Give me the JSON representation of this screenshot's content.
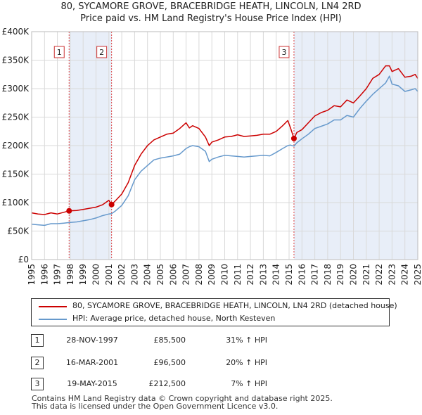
{
  "chart_data": {
    "type": "line",
    "title": "80, SYCAMORE GROVE, BRACEBRIDGE HEATH, LINCOLN, LN4 2RD",
    "subtitle": "Price paid vs. HM Land Registry's House Price Index (HPI)",
    "xlabel": "",
    "ylabel": "",
    "xlim": [
      1995,
      2025
    ],
    "ylim": [
      0,
      400000
    ],
    "grid": true,
    "x_ticks": [
      "1995",
      "1996",
      "1997",
      "1998",
      "1999",
      "2000",
      "2001",
      "2002",
      "2003",
      "2004",
      "2005",
      "2006",
      "2007",
      "2008",
      "2009",
      "2010",
      "2011",
      "2012",
      "2013",
      "2014",
      "2015",
      "2016",
      "2017",
      "2018",
      "2019",
      "2020",
      "2021",
      "2022",
      "2023",
      "2024",
      "2025"
    ],
    "y_ticks": [
      {
        "value": 0,
        "label": "£0"
      },
      {
        "value": 50000,
        "label": "£50K"
      },
      {
        "value": 100000,
        "label": "£100K"
      },
      {
        "value": 150000,
        "label": "£150K"
      },
      {
        "value": 200000,
        "label": "£200K"
      },
      {
        "value": 250000,
        "label": "£250K"
      },
      {
        "value": 300000,
        "label": "£300K"
      },
      {
        "value": 350000,
        "label": "£350K"
      },
      {
        "value": 400000,
        "label": "£400K"
      }
    ],
    "series": [
      {
        "name": "80, SYCAMORE GROVE, BRACEBRIDGE HEATH, LINCOLN, LN4 2RD (detached house)",
        "color": "#cc0000",
        "x": [
          1995.0,
          1995.5,
          1996.0,
          1996.5,
          1997.0,
          1997.5,
          1997.91,
          1998.5,
          1999.0,
          1999.5,
          2000.0,
          2000.5,
          2001.0,
          2001.21,
          2001.5,
          2002.0,
          2002.5,
          2003.0,
          2003.5,
          2004.0,
          2004.5,
          2005.0,
          2005.5,
          2006.0,
          2006.5,
          2007.0,
          2007.25,
          2007.5,
          2008.0,
          2008.5,
          2008.8,
          2009.0,
          2009.5,
          2010.0,
          2010.5,
          2011.0,
          2011.5,
          2012.0,
          2012.5,
          2013.0,
          2013.5,
          2014.0,
          2014.5,
          2014.9,
          2015.1,
          2015.38,
          2015.6,
          2016.0,
          2016.5,
          2017.0,
          2017.5,
          2018.0,
          2018.5,
          2019.0,
          2019.5,
          2020.0,
          2020.5,
          2021.0,
          2021.5,
          2022.0,
          2022.5,
          2022.8,
          2023.0,
          2023.5,
          2024.0,
          2024.5,
          2024.8,
          2025.0
        ],
        "values": [
          82000,
          80000,
          79000,
          82000,
          80000,
          83000,
          85500,
          86000,
          88000,
          90000,
          92000,
          96000,
          104000,
          96500,
          103000,
          115000,
          135000,
          165000,
          185000,
          200000,
          210000,
          215000,
          220000,
          222000,
          230000,
          240000,
          231000,
          235000,
          230000,
          215000,
          200000,
          206000,
          210000,
          215000,
          216000,
          219000,
          216000,
          217000,
          218000,
          220000,
          220000,
          225000,
          235000,
          244000,
          232000,
          212500,
          223000,
          228000,
          240000,
          252000,
          258000,
          262000,
          270000,
          268000,
          280000,
          275000,
          287000,
          300000,
          318000,
          325000,
          340000,
          340000,
          330000,
          335000,
          320000,
          322000,
          325000,
          318000
        ]
      },
      {
        "name": "HPI: Average price, detached house, North Kesteven",
        "color": "#6699cc",
        "x": [
          1995.0,
          1995.5,
          1996.0,
          1996.5,
          1997.0,
          1997.5,
          1997.91,
          1998.5,
          1999.0,
          1999.5,
          2000.0,
          2000.5,
          2001.0,
          2001.21,
          2001.5,
          2002.0,
          2002.5,
          2003.0,
          2003.5,
          2004.0,
          2004.5,
          2005.0,
          2005.5,
          2006.0,
          2006.5,
          2007.0,
          2007.25,
          2007.5,
          2008.0,
          2008.5,
          2008.8,
          2009.0,
          2009.5,
          2010.0,
          2010.5,
          2011.0,
          2011.5,
          2012.0,
          2012.5,
          2013.0,
          2013.5,
          2014.0,
          2014.5,
          2014.9,
          2015.1,
          2015.38,
          2015.6,
          2016.0,
          2016.5,
          2017.0,
          2017.5,
          2018.0,
          2018.5,
          2019.0,
          2019.5,
          2020.0,
          2020.5,
          2021.0,
          2021.5,
          2022.0,
          2022.5,
          2022.8,
          2023.0,
          2023.5,
          2024.0,
          2024.5,
          2024.8,
          2025.0
        ],
        "values": [
          62000,
          61000,
          60000,
          63000,
          63000,
          64000,
          65000,
          66000,
          68000,
          70000,
          73000,
          77000,
          80000,
          80500,
          85000,
          95000,
          112000,
          140000,
          155000,
          165000,
          175000,
          178000,
          180000,
          182000,
          185000,
          195000,
          198000,
          200000,
          198000,
          190000,
          172000,
          176000,
          180000,
          183000,
          182000,
          181000,
          180000,
          181000,
          182000,
          183000,
          182000,
          188000,
          195000,
          200000,
          201000,
          199000,
          205000,
          212000,
          220000,
          230000,
          234000,
          238000,
          245000,
          245000,
          253000,
          250000,
          265000,
          278000,
          290000,
          300000,
          310000,
          322000,
          308000,
          305000,
          295000,
          298000,
          300000,
          295000
        ]
      }
    ],
    "sales": [
      {
        "marker": "1",
        "x": 1997.91,
        "price": 85500
      },
      {
        "marker": "2",
        "x": 2001.21,
        "price": 96500
      },
      {
        "marker": "3",
        "x": 2015.38,
        "price": 212500
      }
    ],
    "shaded_ranges": [
      [
        1997.91,
        2001.21
      ],
      [
        2015.38,
        2025
      ]
    ]
  },
  "legend": {
    "property_label": "80, SYCAMORE GROVE, BRACEBRIDGE HEATH, LINCOLN, LN4 2RD (detached house)",
    "hpi_label": "HPI: Average price, detached house, North Kesteven"
  },
  "transactions": [
    {
      "num": "1",
      "date": "28-NOV-1997",
      "price": "£85,500",
      "hpi": "31% ↑ HPI"
    },
    {
      "num": "2",
      "date": "16-MAR-2001",
      "price": "£96,500",
      "hpi": "20% ↑ HPI"
    },
    {
      "num": "3",
      "date": "19-MAY-2015",
      "price": "£212,500",
      "hpi": "7% ↑ HPI"
    }
  ],
  "footer": {
    "line1": "Contains HM Land Registry data © Crown copyright and database right 2025.",
    "line2": "This data is licensed under the Open Government Licence v3.0."
  },
  "colors": {
    "property": "#cc0000",
    "hpi": "#6699cc",
    "shade": "#e8eef8",
    "grid": "#d9d9d9",
    "marker_line": "#dd4444"
  }
}
